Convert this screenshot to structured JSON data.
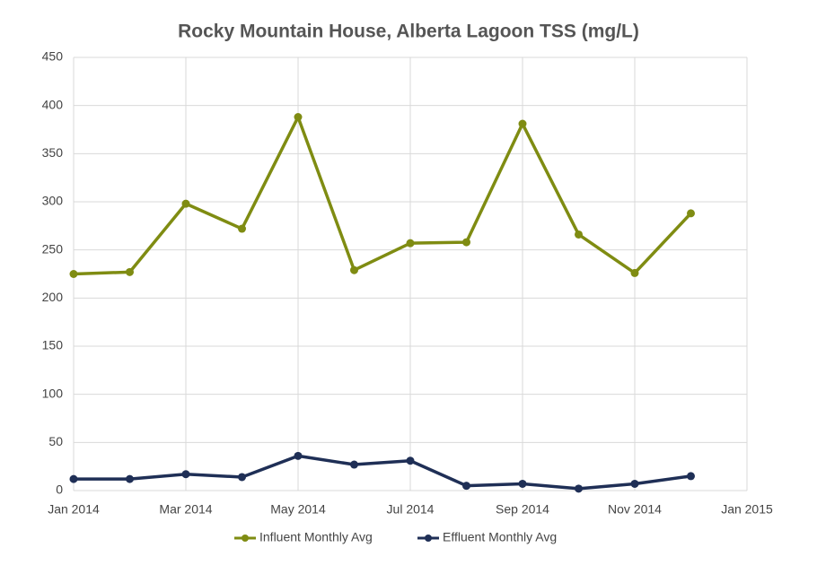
{
  "chart_data": {
    "type": "line",
    "title": "Rocky Mountain House, Alberta Lagoon TSS (mg/L)",
    "x": [
      "2014-01",
      "2014-02",
      "2014-03",
      "2014-04",
      "2014-05",
      "2014-06",
      "2014-07",
      "2014-08",
      "2014-09",
      "2014-10",
      "2014-11",
      "2014-12"
    ],
    "series": [
      {
        "name": "Influent Monthly Avg",
        "color": "#7f8c12",
        "values": [
          225,
          227,
          298,
          272,
          388,
          229,
          257,
          258,
          381,
          266,
          226,
          288
        ]
      },
      {
        "name": "Effluent Monthly Avg",
        "color": "#1f2f56",
        "values": [
          12,
          12,
          17,
          14,
          36,
          27,
          31,
          5,
          7,
          2,
          7,
          15
        ]
      }
    ],
    "xlim": [
      "2014-01",
      "2015-01"
    ],
    "xticks": [
      {
        "value": "2014-01",
        "label": "Jan 2014"
      },
      {
        "value": "2014-03",
        "label": "Mar 2014"
      },
      {
        "value": "2014-05",
        "label": "May 2014"
      },
      {
        "value": "2014-07",
        "label": "Jul 2014"
      },
      {
        "value": "2014-09",
        "label": "Sep 2014"
      },
      {
        "value": "2014-11",
        "label": "Nov 2014"
      },
      {
        "value": "2015-01",
        "label": "Jan 2015"
      }
    ],
    "ylim": [
      0,
      450
    ],
    "yticks": [
      0,
      50,
      100,
      150,
      200,
      250,
      300,
      350,
      400,
      450
    ],
    "grid": true,
    "legend": "bottom"
  }
}
